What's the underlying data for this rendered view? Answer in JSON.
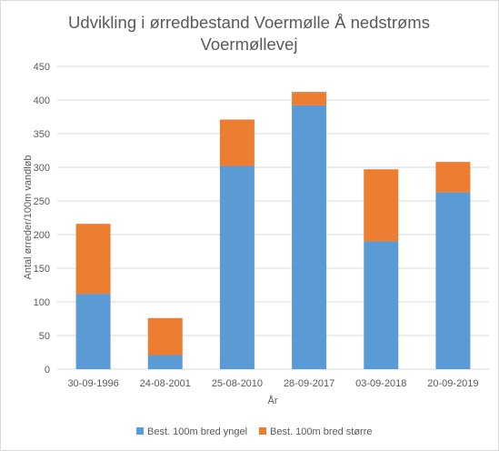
{
  "chart_data": {
    "type": "bar",
    "stacked": true,
    "title_lines": [
      "Udvikling i ørredbestand Voermølle Å nedstrøms",
      "Voermøllevej"
    ],
    "xlabel": "År",
    "ylabel": "Antal ørreder/100m vandløb",
    "ylim": [
      0,
      450
    ],
    "yticks": [
      0,
      50,
      100,
      150,
      200,
      250,
      300,
      350,
      400,
      450
    ],
    "grid": true,
    "legend_position": "bottom",
    "categories": [
      "30-09-1996",
      "24-08-2001",
      "25-08-2010",
      "28-09-2017",
      "03-09-2018",
      "20-09-2019"
    ],
    "series": [
      {
        "name": "Best. 100m bred yngel",
        "color": "#5b9bd5",
        "values": [
          112,
          21,
          302,
          392,
          190,
          263
        ]
      },
      {
        "name": "Best. 100m bred større",
        "color": "#ed7d31",
        "values": [
          104,
          55,
          69,
          20,
          107,
          45
        ]
      }
    ]
  }
}
